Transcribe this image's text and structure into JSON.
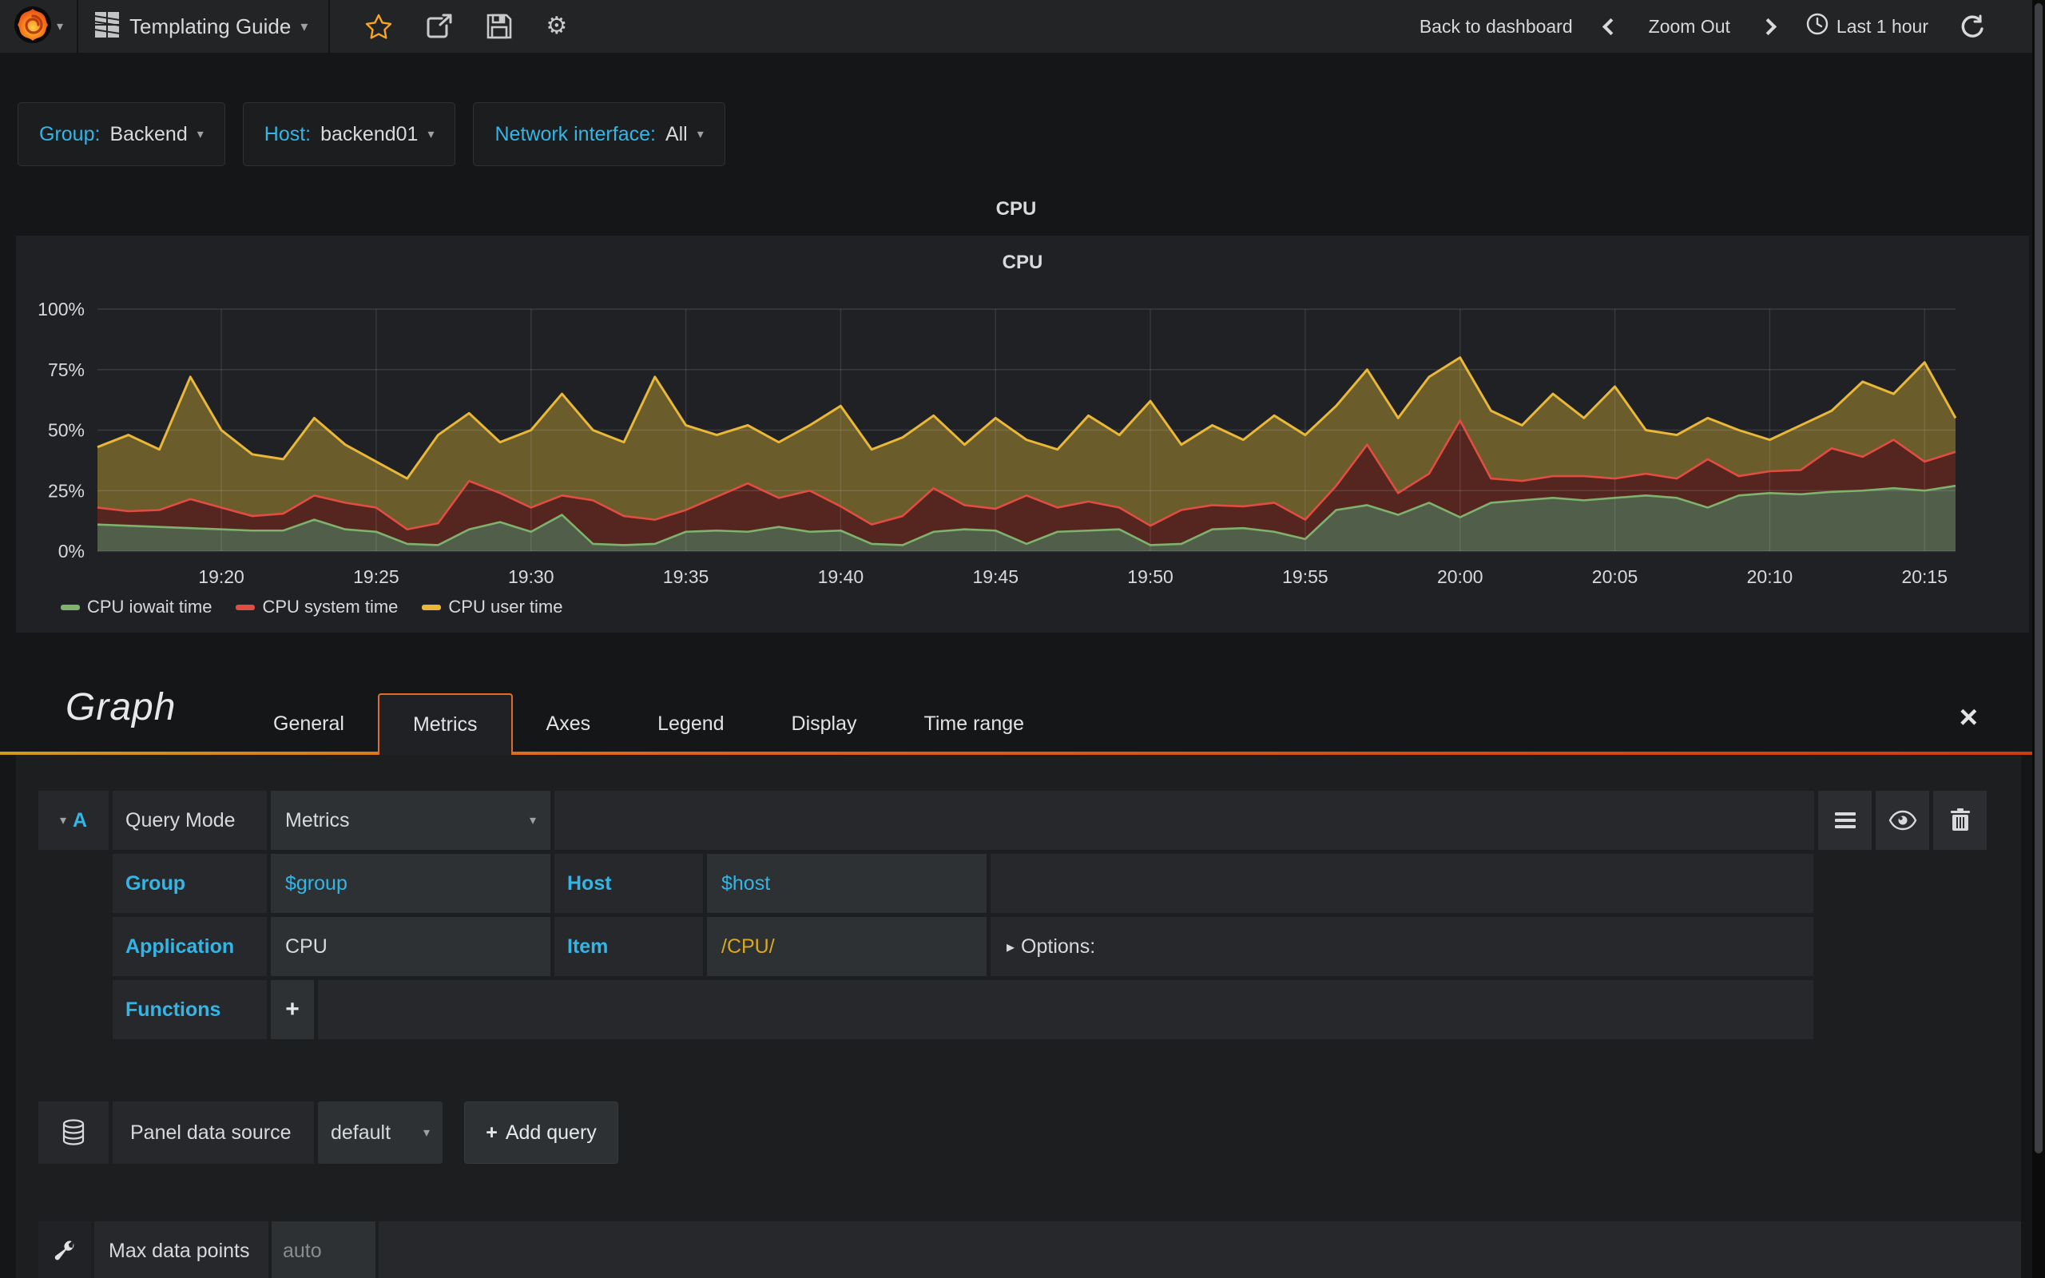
{
  "navbar": {
    "dashboard_title": "Templating Guide",
    "back_to_dashboard": "Back to dashboard",
    "zoom_out": "Zoom Out",
    "time_range": "Last 1 hour"
  },
  "icons": {
    "caret_down": "▾",
    "collapse_arrow": "▸",
    "close": "×",
    "plus": "+",
    "gear": "⚙"
  },
  "variables": [
    {
      "label": "Group:",
      "value": "Backend"
    },
    {
      "label": "Host:",
      "value": "backend01"
    },
    {
      "label": "Network interface:",
      "value": "All"
    }
  ],
  "row_title": "CPU",
  "panel": {
    "title": "CPU"
  },
  "chart_data": {
    "type": "area",
    "stacked": true,
    "title": "CPU",
    "ylim": [
      0,
      100
    ],
    "grid": true,
    "legend_position": "bottom-left",
    "x_domain": {
      "start": "19:16",
      "end": "20:16",
      "minutes": 60
    },
    "y_ticks": [
      {
        "value": 0,
        "label": "0%"
      },
      {
        "value": 25,
        "label": "25%"
      },
      {
        "value": 50,
        "label": "50%"
      },
      {
        "value": 75,
        "label": "75%"
      },
      {
        "value": 100,
        "label": "100%"
      }
    ],
    "x_ticks": [
      {
        "minute": 4,
        "label": "19:20"
      },
      {
        "minute": 9,
        "label": "19:25"
      },
      {
        "minute": 14,
        "label": "19:30"
      },
      {
        "minute": 19,
        "label": "19:35"
      },
      {
        "minute": 24,
        "label": "19:40"
      },
      {
        "minute": 29,
        "label": "19:45"
      },
      {
        "minute": 34,
        "label": "19:50"
      },
      {
        "minute": 39,
        "label": "19:55"
      },
      {
        "minute": 44,
        "label": "20:00"
      },
      {
        "minute": 49,
        "label": "20:05"
      },
      {
        "minute": 54,
        "label": "20:10"
      },
      {
        "minute": 59,
        "label": "20:15"
      }
    ],
    "series": [
      {
        "name": "CPU iowait time",
        "color": "#7EB26D",
        "fill": "#515e4a",
        "values": [
          11,
          10.5,
          10,
          9.5,
          9,
          8.5,
          8.5,
          13,
          9,
          8,
          3,
          2.5,
          9,
          12,
          8,
          15,
          3,
          2.5,
          3,
          8,
          8.5,
          8,
          10,
          8,
          8.5,
          3,
          2.5,
          8,
          9,
          8.5,
          3,
          8,
          8.5,
          9,
          2.5,
          3,
          9,
          9.5,
          8,
          5,
          17,
          19,
          15,
          20,
          14,
          20,
          21,
          22,
          21,
          22,
          23,
          22,
          18,
          23,
          24,
          23.5,
          24.5,
          25,
          26,
          25,
          27
        ]
      },
      {
        "name": "CPU system time",
        "color": "#E24D42",
        "fill": "#552620",
        "values": [
          7,
          6,
          7,
          12,
          9,
          6,
          7,
          10,
          11,
          10,
          6,
          9,
          20,
          12,
          10,
          8,
          18,
          12,
          10,
          9,
          14,
          20,
          12,
          17,
          10,
          8,
          12,
          18,
          10,
          9,
          20,
          10,
          12,
          9,
          8,
          14,
          10,
          9,
          12,
          8,
          10,
          25,
          9,
          12,
          40,
          10,
          8,
          9,
          10,
          8,
          9,
          8,
          20,
          8,
          9,
          10,
          18,
          14,
          20,
          12,
          14
        ]
      },
      {
        "name": "CPU user time",
        "color": "#EAB839",
        "fill": "#6a5c2b",
        "values": [
          25,
          31.5,
          25,
          50.5,
          32,
          25.5,
          22.5,
          32,
          24,
          19,
          21,
          36.5,
          28,
          21,
          32,
          42,
          29,
          30.5,
          59,
          35,
          25.5,
          24,
          23,
          27,
          41.5,
          31,
          32.5,
          30,
          25,
          37.5,
          23,
          24,
          35.5,
          30,
          51.5,
          27,
          33,
          27.5,
          36,
          35,
          33,
          31,
          31,
          40,
          26,
          28,
          23,
          34,
          24,
          38,
          18,
          18,
          17,
          19,
          13,
          18.5,
          15.5,
          31,
          19,
          41,
          14
        ]
      }
    ]
  },
  "editor": {
    "panel_type": "Graph",
    "tabs": [
      {
        "label": "General",
        "active": false
      },
      {
        "label": "Metrics",
        "active": true
      },
      {
        "label": "Axes",
        "active": false
      },
      {
        "label": "Legend",
        "active": false
      },
      {
        "label": "Display",
        "active": false
      },
      {
        "label": "Time range",
        "active": false
      }
    ],
    "query": {
      "letter": "A",
      "query_mode_label": "Query Mode",
      "query_mode_value": "Metrics",
      "fields": [
        {
          "label": "Group",
          "value": "$group"
        },
        {
          "label": "Host",
          "value": "$host"
        },
        {
          "label": "Application",
          "value": "CPU"
        },
        {
          "label": "Item",
          "value": "/CPU/"
        }
      ],
      "options_label": "Options:",
      "functions_label": "Functions"
    },
    "datasource": {
      "label": "Panel data source",
      "value": "default",
      "add_query_label": "Add query"
    },
    "max_data_points": {
      "label": "Max data points",
      "placeholder": "auto"
    }
  }
}
